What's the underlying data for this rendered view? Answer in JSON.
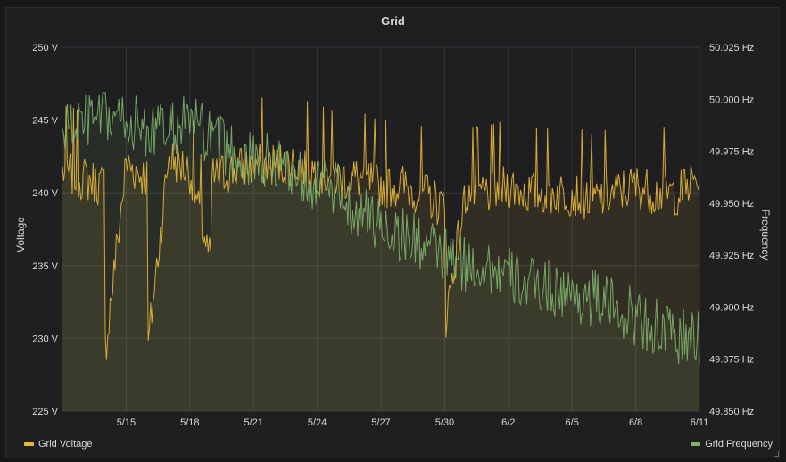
{
  "panel": {
    "title": "Grid"
  },
  "colors": {
    "voltage": "#eab839",
    "frequency": "#7eb26d",
    "grid": "#3a3a3d",
    "text": "#d8d9da",
    "background": "#1f1f21"
  },
  "chart_data": {
    "type": "area",
    "title": "Grid",
    "x_axis": {
      "type": "date",
      "range": [
        "2019-05-12",
        "2019-06-11"
      ],
      "ticks": [
        "2019-05-15",
        "2019-05-18",
        "2019-05-21",
        "2019-05-24",
        "2019-05-27",
        "2019-05-30",
        "2019-06-02",
        "2019-06-05",
        "2019-06-08",
        "2019-06-11"
      ],
      "tick_labels": [
        "5/15",
        "5/18",
        "5/21",
        "5/24",
        "5/27",
        "5/30",
        "6/2",
        "6/5",
        "6/8",
        "6/11"
      ]
    },
    "y_left": {
      "label": "Voltage",
      "unit": "V",
      "range": [
        225,
        250
      ],
      "ticks": [
        225,
        230,
        235,
        240,
        245,
        250
      ],
      "tick_labels": [
        "225 V",
        "230 V",
        "235 V",
        "240 V",
        "245 V",
        "250 V"
      ]
    },
    "y_right": {
      "label": "Frequency",
      "unit": "Hz",
      "range": [
        49.85,
        50.025
      ],
      "ticks": [
        49.85,
        49.875,
        49.9,
        49.925,
        49.95,
        49.975,
        50.0,
        50.025
      ],
      "tick_labels": [
        "49.850 Hz",
        "49.875 Hz",
        "49.900 Hz",
        "49.925 Hz",
        "49.950 Hz",
        "49.975 Hz",
        "50.000 Hz",
        "50.025 Hz"
      ]
    },
    "grid": true,
    "legend_position": "bottom",
    "series": [
      {
        "name": "Grid Voltage",
        "axis": "left",
        "color": "#eab839",
        "x": [
          "2019-05-12",
          "2019-05-13",
          "2019-05-14",
          "2019-05-14",
          "2019-05-15",
          "2019-05-16",
          "2019-05-16",
          "2019-05-17",
          "2019-05-18",
          "2019-05-19",
          "2019-05-19",
          "2019-05-20",
          "2019-05-21",
          "2019-05-22",
          "2019-05-23",
          "2019-05-24",
          "2019-05-25",
          "2019-05-26",
          "2019-05-27",
          "2019-05-28",
          "2019-05-29",
          "2019-05-30",
          "2019-05-30",
          "2019-05-31",
          "2019-06-01",
          "2019-06-02",
          "2019-06-03",
          "2019-06-04",
          "2019-06-05",
          "2019-06-06",
          "2019-06-07",
          "2019-06-08",
          "2019-06-09",
          "2019-06-10",
          "2019-06-11"
        ],
        "values": [
          241.5,
          241,
          240.5,
          229,
          242,
          241,
          229,
          242.5,
          241.5,
          235,
          241,
          241.5,
          242,
          242,
          242,
          241.5,
          241,
          241,
          240.5,
          240.5,
          240,
          239,
          231,
          240,
          240,
          240.5,
          240,
          240,
          240,
          239.5,
          240,
          240.5,
          240,
          240,
          241
        ]
      },
      {
        "name": "Grid Frequency",
        "axis": "right",
        "color": "#7eb26d",
        "x": [
          "2019-05-12",
          "2019-05-13",
          "2019-05-14",
          "2019-05-15",
          "2019-05-16",
          "2019-05-17",
          "2019-05-18",
          "2019-05-19",
          "2019-05-20",
          "2019-05-21",
          "2019-05-22",
          "2019-05-23",
          "2019-05-24",
          "2019-05-25",
          "2019-05-26",
          "2019-05-27",
          "2019-05-28",
          "2019-05-29",
          "2019-05-30",
          "2019-05-31",
          "2019-06-01",
          "2019-06-02",
          "2019-06-03",
          "2019-06-04",
          "2019-06-05",
          "2019-06-06",
          "2019-06-07",
          "2019-06-08",
          "2019-06-09",
          "2019-06-10",
          "2019-06-11"
        ],
        "values": [
          49.985,
          49.99,
          49.99,
          49.99,
          49.985,
          49.985,
          49.99,
          49.98,
          49.975,
          49.97,
          49.97,
          49.965,
          49.96,
          49.955,
          49.945,
          49.94,
          49.935,
          49.93,
          49.925,
          49.92,
          49.92,
          49.915,
          49.91,
          49.91,
          49.905,
          49.905,
          49.9,
          49.895,
          49.89,
          49.885,
          49.885
        ]
      }
    ]
  },
  "legend": {
    "left_label": "Grid Voltage",
    "right_label": "Grid Frequency"
  }
}
